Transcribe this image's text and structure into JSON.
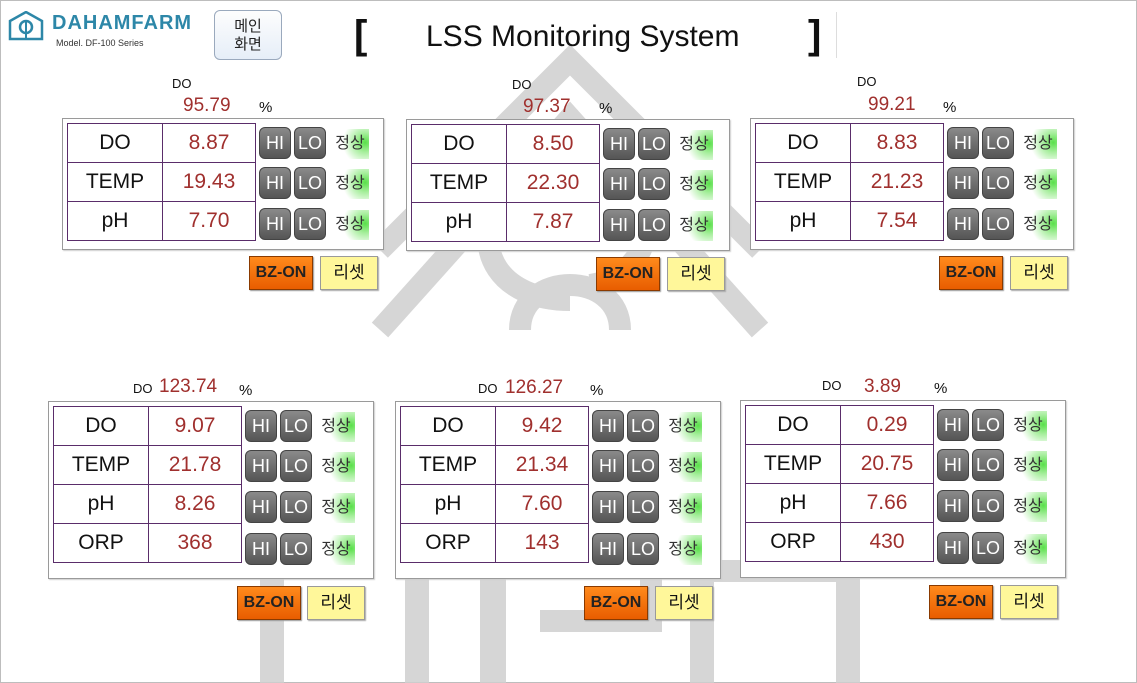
{
  "brand": {
    "name": "DAHAMFARM",
    "model": "Model. DF-100 Series",
    "logo_icon": "farm-house-logo-icon"
  },
  "main_button": {
    "label_line1": "메인",
    "label_line2": "화면"
  },
  "title": {
    "open": "[",
    "text": "LSS Monitoring System",
    "close": "]"
  },
  "status": {
    "hi": "HI",
    "lo": "LO",
    "normal": "정상",
    "buzzer": "BZ-ON",
    "reset": "리셋"
  },
  "colors": {
    "value_text": "#a0302e",
    "buzzer": "#ff7a12",
    "reset": "#fff79a",
    "normal_led": "#59e04a",
    "indicator": "#6e6e6e"
  },
  "tanks": [
    {
      "do_label": "DO",
      "do_percent": "95.79",
      "percent_sign": "%",
      "rows": [
        {
          "name": "DO",
          "value": "8.87"
        },
        {
          "name": "TEMP",
          "value": "19.43"
        },
        {
          "name": "pH",
          "value": "7.70"
        }
      ]
    },
    {
      "do_label": "DO",
      "do_percent": "97.37",
      "percent_sign": "%",
      "rows": [
        {
          "name": "DO",
          "value": "8.50"
        },
        {
          "name": "TEMP",
          "value": "22.30"
        },
        {
          "name": "pH",
          "value": "7.87"
        }
      ]
    },
    {
      "do_label": "DO",
      "do_percent": "99.21",
      "percent_sign": "%",
      "rows": [
        {
          "name": "DO",
          "value": "8.83"
        },
        {
          "name": "TEMP",
          "value": "21.23"
        },
        {
          "name": "pH",
          "value": "7.54"
        }
      ]
    },
    {
      "do_label": "DO",
      "do_percent": "123.74",
      "percent_sign": "%",
      "rows": [
        {
          "name": "DO",
          "value": "9.07"
        },
        {
          "name": "TEMP",
          "value": "21.78"
        },
        {
          "name": "pH",
          "value": "8.26"
        },
        {
          "name": "ORP",
          "value": "368"
        }
      ]
    },
    {
      "do_label": "DO",
      "do_percent": "126.27",
      "percent_sign": "%",
      "rows": [
        {
          "name": "DO",
          "value": "9.42"
        },
        {
          "name": "TEMP",
          "value": "21.34"
        },
        {
          "name": "pH",
          "value": "7.60"
        },
        {
          "name": "ORP",
          "value": "143"
        }
      ]
    },
    {
      "do_label": "DO",
      "do_percent": "3.89",
      "percent_sign": "%",
      "rows": [
        {
          "name": "DO",
          "value": "0.29"
        },
        {
          "name": "TEMP",
          "value": "20.75"
        },
        {
          "name": "pH",
          "value": "7.66"
        },
        {
          "name": "ORP",
          "value": "430"
        }
      ]
    }
  ]
}
